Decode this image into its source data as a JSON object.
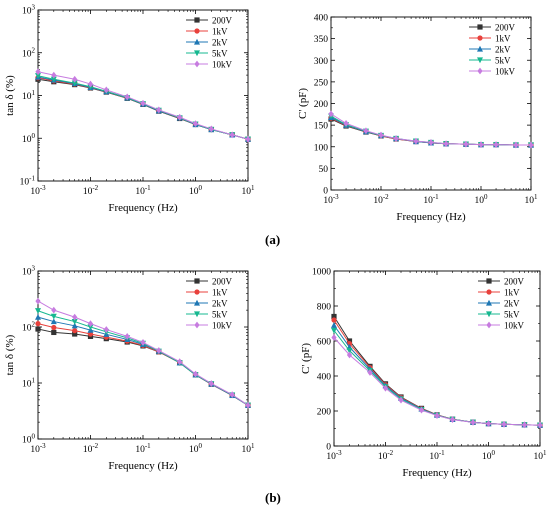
{
  "panel_labels": [
    "(a)",
    "(b)"
  ],
  "series_colors": [
    "#333333",
    "#e8413c",
    "#1f77b4",
    "#17b890",
    "#c77ce0"
  ],
  "series_markers": [
    "square",
    "circle",
    "triangle",
    "triangle-down",
    "diamond"
  ],
  "chart_data": [
    {
      "id": "a-tan",
      "type": "line",
      "title": "",
      "xlabel": "Frequency (Hz)",
      "ylabel": "tan δ (%)",
      "xscale": "log",
      "yscale": "log",
      "xlim": [
        0.001,
        10
      ],
      "ylim": [
        0.1,
        1000
      ],
      "xticks": [
        0.001,
        0.01,
        0.1,
        1,
        10
      ],
      "xtick_labels": [
        [
          "10",
          "-3"
        ],
        [
          "10",
          "-2"
        ],
        [
          "10",
          "-1"
        ],
        [
          "10",
          "0"
        ],
        [
          "10",
          "1"
        ]
      ],
      "yticks": [
        0.1,
        1,
        10,
        100,
        1000
      ],
      "ytick_labels": [
        [
          "10",
          "-1"
        ],
        [
          "10",
          "0"
        ],
        [
          "10",
          "1"
        ],
        [
          "10",
          "2"
        ],
        [
          "10",
          "3"
        ]
      ],
      "legend": "top-right",
      "x": [
        0.001,
        0.002,
        0.005,
        0.01,
        0.02,
        0.05,
        0.1,
        0.2,
        0.5,
        1,
        2,
        5,
        10
      ],
      "series": [
        {
          "name": "200V",
          "values": [
            24,
            21,
            18,
            15,
            12,
            8.6,
            6.2,
            4.3,
            2.9,
            2.1,
            1.6,
            1.2,
            0.95
          ]
        },
        {
          "name": "1kV",
          "values": [
            26,
            22,
            18.5,
            15.3,
            12.2,
            8.7,
            6.3,
            4.4,
            2.95,
            2.1,
            1.6,
            1.2,
            0.95
          ]
        },
        {
          "name": "2kV",
          "values": [
            27,
            23,
            19,
            15.5,
            12.3,
            8.8,
            6.3,
            4.4,
            3.0,
            2.1,
            1.6,
            1.2,
            0.95
          ]
        },
        {
          "name": "5kV",
          "values": [
            29,
            24,
            19.5,
            16,
            12.5,
            8.9,
            6.4,
            4.5,
            3.0,
            2.15,
            1.6,
            1.2,
            0.95
          ]
        },
        {
          "name": "10kV",
          "values": [
            36,
            30,
            24,
            18.5,
            13.5,
            9.3,
            6.6,
            4.6,
            3.1,
            2.2,
            1.65,
            1.2,
            0.95
          ]
        }
      ]
    },
    {
      "id": "a-cap",
      "type": "line",
      "title": "",
      "xlabel": "Frequency (Hz)",
      "ylabel": "C' (pF)",
      "xscale": "log",
      "yscale": "linear",
      "xlim": [
        0.001,
        10
      ],
      "ylim": [
        0,
        400
      ],
      "xticks": [
        0.001,
        0.01,
        0.1,
        1,
        10
      ],
      "xtick_labels": [
        [
          "10",
          "-3"
        ],
        [
          "10",
          "-2"
        ],
        [
          "10",
          "-1"
        ],
        [
          "10",
          "0"
        ],
        [
          "10",
          "1"
        ]
      ],
      "yticks": [
        0,
        50,
        100,
        150,
        200,
        250,
        300,
        350,
        400
      ],
      "ytick_labels": [
        [
          "0",
          ""
        ],
        [
          "50",
          ""
        ],
        [
          "100",
          ""
        ],
        [
          "150",
          ""
        ],
        [
          "200",
          ""
        ],
        [
          "250",
          ""
        ],
        [
          "300",
          ""
        ],
        [
          "350",
          ""
        ],
        [
          "400",
          ""
        ]
      ],
      "legend": "top-right",
      "x": [
        0.001,
        0.002,
        0.005,
        0.01,
        0.02,
        0.05,
        0.1,
        0.2,
        0.5,
        1,
        2,
        5,
        10
      ],
      "series": [
        {
          "name": "200V",
          "values": [
            164,
            148,
            134,
            125,
            118,
            112,
            109,
            107,
            106,
            105,
            105,
            104,
            104
          ]
        },
        {
          "name": "1kV",
          "values": [
            166,
            149,
            135,
            125,
            118,
            112,
            109,
            107,
            106,
            105,
            105,
            104,
            104
          ]
        },
        {
          "name": "2kV",
          "values": [
            168,
            150,
            135,
            126,
            119,
            112,
            109,
            107,
            106,
            105,
            105,
            104,
            104
          ]
        },
        {
          "name": "5kV",
          "values": [
            171,
            151,
            136,
            126,
            119,
            113,
            110,
            107,
            106,
            105,
            105,
            104,
            104
          ]
        },
        {
          "name": "10kV",
          "values": [
            176,
            154,
            137,
            127,
            119,
            113,
            110,
            107,
            106,
            105,
            105,
            104,
            104
          ]
        }
      ]
    },
    {
      "id": "b-tan",
      "type": "line",
      "title": "",
      "xlabel": "Frequency (Hz)",
      "ylabel": "tan δ (%)",
      "xscale": "log",
      "yscale": "log",
      "xlim": [
        0.001,
        10
      ],
      "ylim": [
        1,
        1000
      ],
      "xticks": [
        0.001,
        0.01,
        0.1,
        1,
        10
      ],
      "xtick_labels": [
        [
          "10",
          "-3"
        ],
        [
          "10",
          "-2"
        ],
        [
          "10",
          "-1"
        ],
        [
          "10",
          "0"
        ],
        [
          "10",
          "1"
        ]
      ],
      "yticks": [
        1,
        10,
        100,
        1000
      ],
      "ytick_labels": [
        [
          "10",
          "0"
        ],
        [
          "10",
          "1"
        ],
        [
          "10",
          "2"
        ],
        [
          "10",
          "3"
        ]
      ],
      "legend": "top-right",
      "x": [
        0.001,
        0.002,
        0.005,
        0.01,
        0.02,
        0.05,
        0.1,
        0.2,
        0.5,
        1,
        2,
        5,
        10
      ],
      "series": [
        {
          "name": "200V",
          "values": [
            92,
            80,
            75,
            68,
            62,
            54,
            46,
            36,
            23,
            14,
            9.5,
            6.0,
            4.0
          ]
        },
        {
          "name": "1kV",
          "values": [
            115,
            98,
            86,
            75,
            66,
            56,
            47,
            36,
            23,
            14,
            9.5,
            6.0,
            4.0
          ]
        },
        {
          "name": "2kV",
          "values": [
            150,
            125,
            105,
            88,
            74,
            60,
            49,
            37,
            23,
            14,
            9.6,
            6.0,
            4.0
          ]
        },
        {
          "name": "5kV",
          "values": [
            195,
            155,
            125,
            100,
            82,
            64,
            51,
            37,
            23,
            14,
            9.7,
            6.1,
            4.0
          ]
        },
        {
          "name": "10kV",
          "values": [
            290,
            200,
            150,
            115,
            90,
            68,
            53,
            38,
            24,
            14.5,
            9.8,
            6.2,
            4.0
          ]
        }
      ]
    },
    {
      "id": "b-cap",
      "type": "line",
      "title": "",
      "xlabel": "Frequency (Hz)",
      "ylabel": "C' (pF)",
      "xscale": "log",
      "yscale": "linear",
      "xlim": [
        0.001,
        10
      ],
      "ylim": [
        0,
        1000
      ],
      "xticks": [
        0.001,
        0.01,
        0.1,
        1,
        10
      ],
      "xtick_labels": [
        [
          "10",
          "-3"
        ],
        [
          "10",
          "-2"
        ],
        [
          "10",
          "-1"
        ],
        [
          "10",
          "0"
        ],
        [
          "10",
          "1"
        ]
      ],
      "yticks": [
        0,
        200,
        400,
        600,
        800,
        1000
      ],
      "ytick_labels": [
        [
          "0",
          ""
        ],
        [
          "200",
          ""
        ],
        [
          "400",
          ""
        ],
        [
          "600",
          ""
        ],
        [
          "800",
          ""
        ],
        [
          "1000",
          ""
        ]
      ],
      "legend": "top-right",
      "x": [
        0.001,
        0.002,
        0.005,
        0.01,
        0.02,
        0.05,
        0.1,
        0.2,
        0.5,
        1,
        2,
        5,
        10
      ],
      "series": [
        {
          "name": "200V",
          "values": [
            740,
            600,
            455,
            355,
            280,
            215,
            178,
            153,
            136,
            128,
            124,
            121,
            119
          ]
        },
        {
          "name": "1kV",
          "values": [
            720,
            585,
            448,
            350,
            277,
            213,
            177,
            153,
            136,
            128,
            124,
            121,
            119
          ]
        },
        {
          "name": "2kV",
          "values": [
            690,
            565,
            440,
            345,
            273,
            211,
            176,
            152,
            136,
            128,
            124,
            121,
            119
          ]
        },
        {
          "name": "5kV",
          "values": [
            660,
            545,
            430,
            338,
            268,
            208,
            175,
            152,
            136,
            128,
            124,
            121,
            119
          ]
        },
        {
          "name": "10kV",
          "values": [
            620,
            520,
            420,
            330,
            262,
            205,
            174,
            151,
            135,
            128,
            124,
            121,
            119
          ]
        }
      ]
    }
  ]
}
